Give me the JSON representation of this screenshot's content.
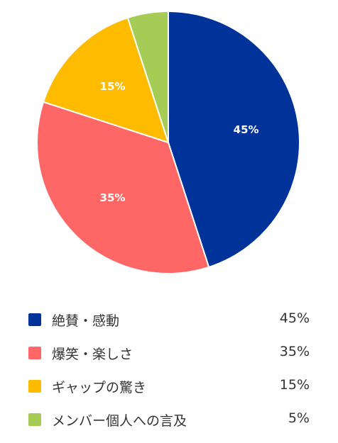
{
  "chart_data": {
    "type": "pie",
    "categories": [
      "絶賛・感動",
      "爆笑・楽しさ",
      "ギャップの驚き",
      "メンバー個人への言及"
    ],
    "values": [
      45,
      35,
      15,
      5
    ],
    "value_labels": [
      "45%",
      "35%",
      "15%",
      "5%"
    ],
    "colors": [
      "#003399",
      "#ff6666",
      "#ffbb00",
      "#a6cc55"
    ],
    "legend_position": "bottom"
  }
}
